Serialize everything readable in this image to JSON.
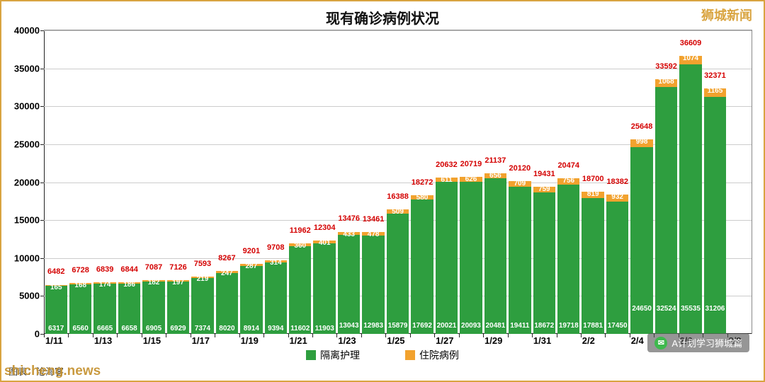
{
  "chart": {
    "type": "stacked-bar",
    "title": "现有确诊病例状况",
    "title_fontsize": 20,
    "title_color": "#111111",
    "background_color": "#ffffff",
    "border_color": "#d9a440",
    "ylim": [
      0,
      40000
    ],
    "ytick_step": 5000,
    "yticks": [
      0,
      5000,
      10000,
      15000,
      20000,
      25000,
      30000,
      35000,
      40000
    ],
    "grid_color": "#cccccc",
    "axis_color": "#222222",
    "ylabel_fontsize": 13,
    "xlabel_fontsize": 13,
    "total_label_color": "#d40000",
    "total_label_fontsize": 11,
    "segment_label_fontsize": 10,
    "segment_label_color": "#ffffff",
    "hosp_label_color": "#c06000",
    "x_categories": [
      "1/11",
      "1/12",
      "1/13",
      "1/14",
      "1/15",
      "1/16",
      "1/17",
      "1/18",
      "1/19",
      "1/20",
      "1/21",
      "1/22",
      "1/23",
      "1/24",
      "1/25",
      "1/26",
      "1/27",
      "1/28",
      "1/29",
      "1/30",
      "1/31",
      "2/1",
      "2/2",
      "2/3",
      "2/4",
      "2/5",
      "2/6",
      "2/7",
      "2/8"
    ],
    "x_labels_shown": [
      "1/11",
      "1/13",
      "1/15",
      "1/17",
      "1/19",
      "1/21",
      "1/23",
      "1/25",
      "1/27",
      "1/29",
      "1/31",
      "2/2",
      "2/4",
      "2/6",
      "2/8"
    ],
    "series": [
      {
        "name": "隔离护理",
        "key": "isolation",
        "color": "#2e9e3f"
      },
      {
        "name": "住院病例",
        "key": "hospital",
        "color": "#f2a22e"
      }
    ],
    "data": [
      {
        "total": 6482,
        "isolation": 6317,
        "hospital": 165
      },
      {
        "total": 6728,
        "isolation": 6560,
        "hospital": 168
      },
      {
        "total": 6839,
        "isolation": 6665,
        "hospital": 174
      },
      {
        "total": 6844,
        "isolation": 6658,
        "hospital": 186
      },
      {
        "total": 7087,
        "isolation": 6905,
        "hospital": 182
      },
      {
        "total": 7126,
        "isolation": 6929,
        "hospital": 197
      },
      {
        "total": 7593,
        "isolation": 7374,
        "hospital": 219
      },
      {
        "total": 8267,
        "isolation": 8020,
        "hospital": 247
      },
      {
        "total": 9201,
        "isolation": 8914,
        "hospital": 287
      },
      {
        "total": 9708,
        "isolation": 9394,
        "hospital": 314
      },
      {
        "total": 11962,
        "isolation": 11602,
        "hospital": 360
      },
      {
        "total": 12304,
        "isolation": 11903,
        "hospital": 401
      },
      {
        "total": 13476,
        "isolation": 13043,
        "hospital": 433
      },
      {
        "total": 13461,
        "isolation": 12983,
        "hospital": 478
      },
      {
        "total": 16388,
        "isolation": 15879,
        "hospital": 509
      },
      {
        "total": 18272,
        "isolation": 17692,
        "hospital": 580
      },
      {
        "total": 20632,
        "isolation": 20021,
        "hospital": 611
      },
      {
        "total": 20719,
        "isolation": 20093,
        "hospital": 626
      },
      {
        "total": 21137,
        "isolation": 20481,
        "hospital": 656
      },
      {
        "total": 20120,
        "isolation": 19411,
        "hospital": 709
      },
      {
        "total": 19431,
        "isolation": 18672,
        "hospital": 759
      },
      {
        "total": 20474,
        "isolation": 19718,
        "hospital": 756
      },
      {
        "total": 18700,
        "isolation": 17881,
        "hospital": 819
      },
      {
        "total": 18382,
        "isolation": 17450,
        "hospital": 932
      },
      {
        "total": 25648,
        "isolation": 24650,
        "hospital": 998
      },
      {
        "total": 33592,
        "isolation": 32524,
        "hospital": 1068
      },
      {
        "total": 36609,
        "isolation": 35535,
        "hospital": 1074
      },
      {
        "total": 32371,
        "isolation": 31206,
        "hospital": 1165
      },
      {
        "total": 0,
        "isolation": 0,
        "hospital": 0
      }
    ],
    "legend_fontsize": 14
  },
  "watermarks": {
    "top_right": "狮城新闻",
    "top_right_color": "#d9a440",
    "bottom_left": "shicheng.news",
    "bottom_left_color": "#c4902c",
    "footer_caption": "图表：沧海客",
    "bottom_right": "A计划学习狮城篇",
    "wechat_bg": "#3eb94d"
  }
}
